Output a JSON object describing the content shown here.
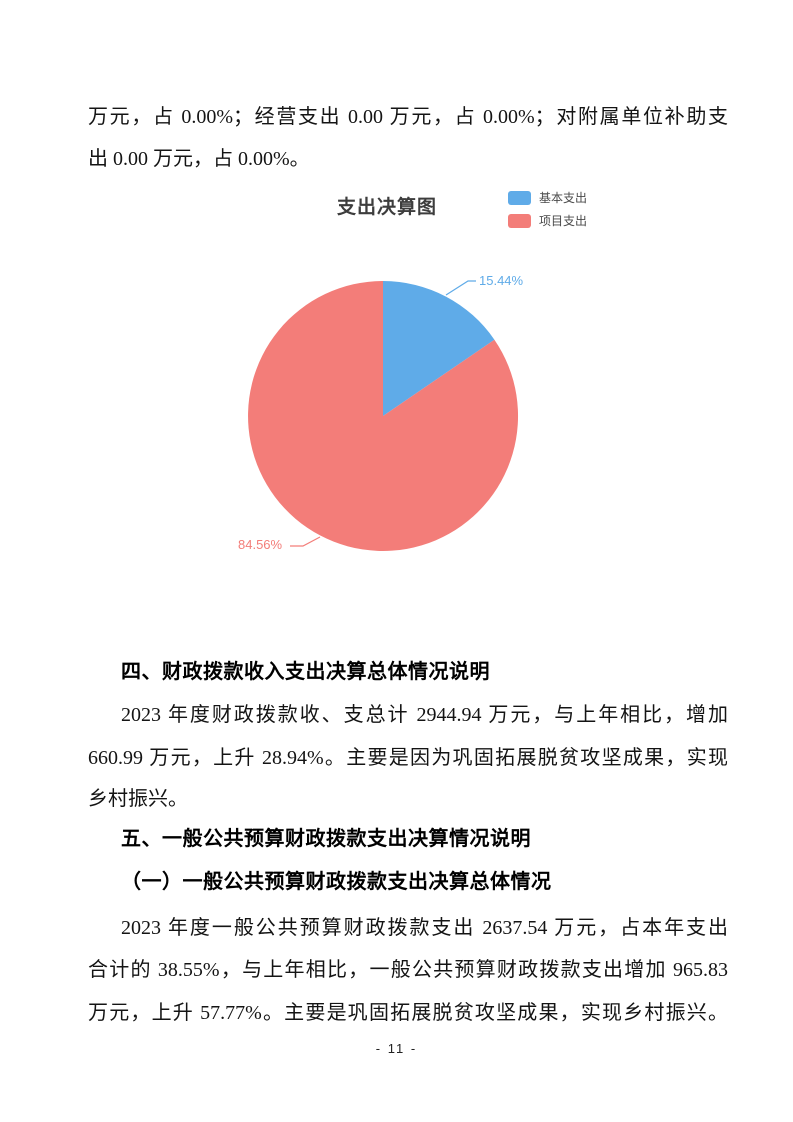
{
  "intro": {
    "lines": [
      "万元，占 0.00%；经营支出 0.00 万元，占 0.00%；对附属单位补助支",
      "出 0.00 万元，占 0.00%。"
    ]
  },
  "chart": {
    "title": "支出决算图"
  },
  "chart_data": {
    "type": "pie",
    "title": "支出决算图",
    "categories": [
      "基本支出",
      "项目支出"
    ],
    "values": [
      15.44,
      84.56
    ],
    "labels": [
      "15.44%",
      "84.56%"
    ],
    "colors": [
      "#5fabe8",
      "#f37d79"
    ],
    "unit": "%",
    "legend_position": "top-right",
    "start_angle": "12-oclock",
    "direction": "clockwise"
  },
  "section4": {
    "heading": "四、财政拨款收入支出决算总体情况说明",
    "lines": [
      "2023 年度财政拨款收、支总计 2944.94 万元，与上年相比，增加",
      "660.99 万元，上升 28.94%。主要是因为巩固拓展脱贫攻坚成果，实现",
      "乡村振兴。"
    ]
  },
  "section5": {
    "heading": "五、一般公共预算财政拨款支出决算情况说明",
    "subheading": "（一）一般公共预算财政拨款支出决算总体情况",
    "lines": [
      "2023 年度一般公共预算财政拨款支出 2637.54 万元，占本年支出",
      "合计的 38.55%，与上年相比，一般公共预算财政拨款支出增加 965.83",
      "万元，上升 57.77%。主要是巩固拓展脱贫攻坚成果，实现乡村振兴。"
    ]
  },
  "footer": {
    "page_number": "- 11 -"
  }
}
